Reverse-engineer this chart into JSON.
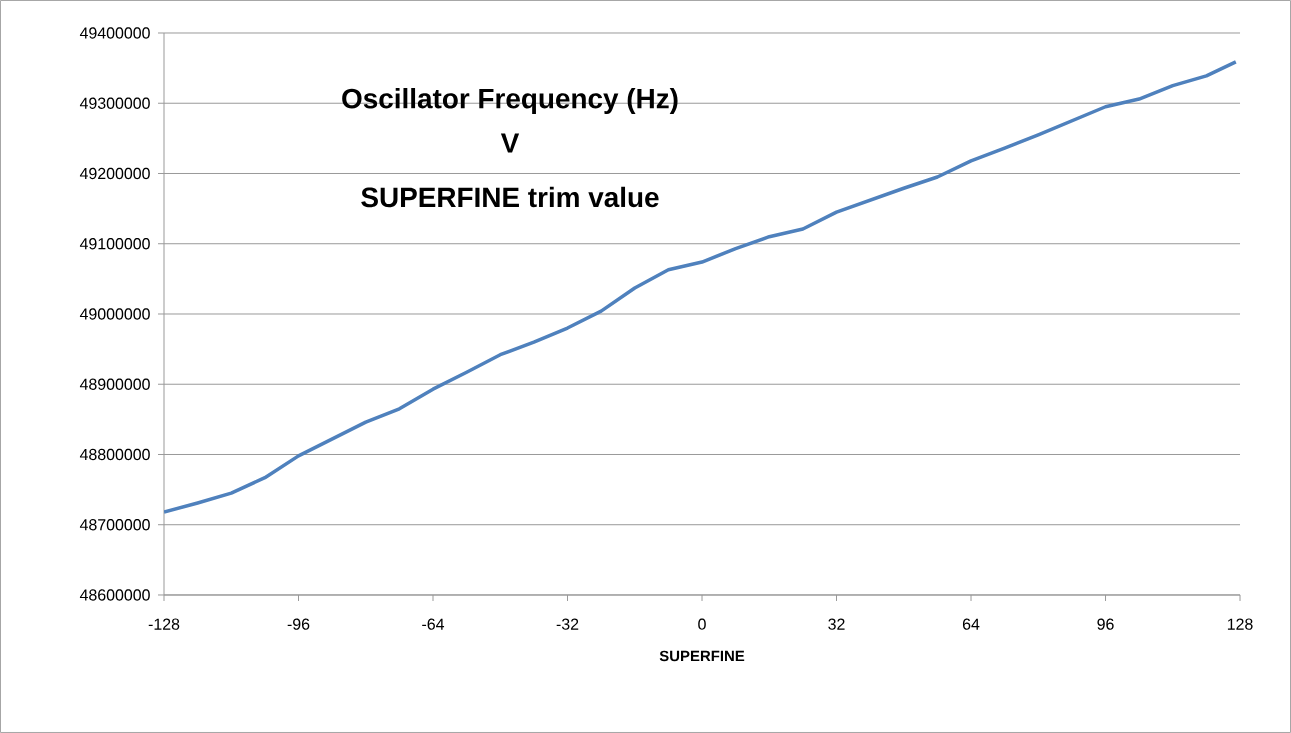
{
  "chart_data": {
    "type": "line",
    "title": "Oscillator Frequency (Hz)",
    "subtitle": "V",
    "annotations": [
      "SUPERFINE trim value"
    ],
    "xlabel": "SUPERFINE",
    "x": [
      -128,
      -120,
      -112,
      -104,
      -96,
      -88,
      -80,
      -72,
      -64,
      -56,
      -48,
      -40,
      -32,
      -24,
      -16,
      -8,
      0,
      8,
      16,
      24,
      32,
      40,
      48,
      56,
      64,
      72,
      80,
      88,
      96,
      104,
      112,
      120,
      127
    ],
    "series": [
      {
        "color": "#4f81bd",
        "values": [
          48718000,
          48731000,
          48745000,
          48767000,
          48798000,
          48822000,
          48846000,
          48865000,
          48893000,
          48917000,
          48942000,
          48960000,
          48980000,
          49004000,
          49037000,
          49063000,
          49074000,
          49093000,
          49110000,
          49121000,
          49145000,
          49162000,
          49179000,
          49195000,
          49218000,
          49236000,
          49255000,
          49275000,
          49295000,
          49306000,
          49325000,
          49339000,
          49359000
        ]
      }
    ],
    "xlim": [
      -128,
      128
    ],
    "xticks": [
      -128,
      -96,
      -64,
      -32,
      0,
      32,
      64,
      96,
      128
    ],
    "ylim": [
      48600000,
      49400000
    ],
    "yticks": [
      48600000,
      48700000,
      48800000,
      48900000,
      49000000,
      49100000,
      49200000,
      49300000,
      49400000
    ],
    "grid": "y",
    "marker": "none",
    "line_style": "solid"
  }
}
